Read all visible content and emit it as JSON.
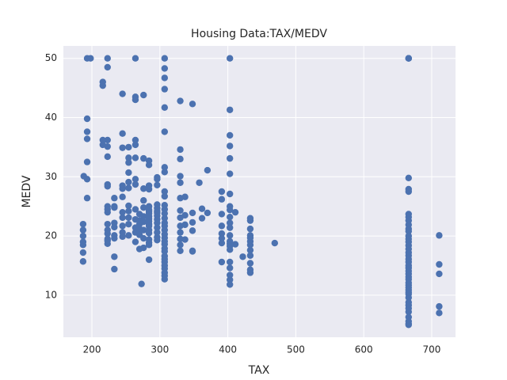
{
  "chart_data": {
    "type": "scatter",
    "title": "Housing Data:TAX/MEDV",
    "x_label": "TAX",
    "y_label": "MEDV",
    "color": "#4c72b0",
    "grid": true,
    "xlim": [
      158,
      735
    ],
    "ylim": [
      2.9,
      52.1
    ],
    "xticks": [
      200,
      300,
      400,
      500,
      600,
      700
    ],
    "yticks": [
      10,
      20,
      30,
      40,
      50
    ],
    "x": [
      187,
      187,
      187,
      187,
      187,
      187,
      187,
      193,
      193,
      193,
      193,
      193,
      193,
      193,
      188,
      198,
      216,
      216,
      216,
      216,
      223,
      223,
      223,
      223,
      223,
      223,
      223,
      223,
      223,
      223,
      223,
      223,
      223,
      223,
      223,
      223,
      233,
      233,
      233,
      233,
      233,
      233,
      233,
      233,
      233,
      245,
      245,
      245,
      245,
      245,
      245,
      245,
      245,
      245,
      245,
      245,
      254,
      254,
      254,
      254,
      254,
      254,
      254,
      254,
      254,
      254,
      254,
      264,
      264,
      264,
      264,
      264,
      264,
      264,
      264,
      264,
      264,
      264,
      264,
      264,
      270,
      270,
      270,
      270,
      270,
      270,
      273,
      276,
      276,
      276,
      276,
      276,
      276,
      276,
      276,
      276,
      276,
      284,
      284,
      284,
      284,
      284,
      284,
      284,
      284,
      284,
      284,
      284,
      284,
      284,
      284,
      284,
      284,
      284,
      284,
      284,
      296,
      296,
      296,
      296,
      296,
      296,
      296,
      296,
      296,
      296,
      296,
      296,
      296,
      296,
      307,
      307,
      307,
      307,
      307,
      307,
      307,
      307,
      307,
      307,
      307,
      307,
      307,
      307,
      307,
      307,
      307,
      307,
      307,
      307,
      307,
      307,
      307,
      307,
      307,
      307,
      307,
      307,
      307,
      307,
      307,
      330,
      330,
      330,
      330,
      330,
      330,
      330,
      330,
      330,
      330,
      330,
      330,
      330,
      337,
      337,
      337,
      337,
      348,
      348,
      348,
      348,
      348,
      348,
      358,
      362,
      362,
      370,
      370,
      391,
      391,
      391,
      391,
      391,
      391,
      391,
      391,
      403,
      403,
      403,
      403,
      403,
      403,
      403,
      403,
      403,
      403,
      403,
      403,
      403,
      403,
      403,
      403,
      403,
      403,
      403,
      403,
      403,
      403,
      411,
      411,
      422,
      433,
      433,
      433,
      433,
      433,
      433,
      433,
      433,
      433,
      433,
      433,
      433,
      469,
      666,
      666,
      666,
      666,
      666,
      666,
      666,
      666,
      666,
      666,
      666,
      666,
      666,
      666,
      666,
      666,
      666,
      666,
      666,
      666,
      666,
      666,
      666,
      666,
      666,
      666,
      666,
      666,
      666,
      666,
      666,
      666,
      666,
      666,
      666,
      666,
      666,
      666,
      666,
      666,
      666,
      666,
      711,
      711,
      711,
      711,
      711
    ],
    "values": [
      22,
      21,
      20,
      17.2,
      15.7,
      19,
      18.5,
      50,
      39.8,
      37.6,
      36.4,
      32.5,
      29.6,
      26.4,
      30.1,
      50,
      46,
      45.4,
      36.2,
      35.4,
      50,
      48.5,
      36.2,
      35.1,
      33.4,
      28.7,
      28.4,
      25,
      24.5,
      24,
      22,
      21,
      20.4,
      19.5,
      18.7,
      19.2,
      26.4,
      25,
      24.8,
      22.2,
      21.5,
      20.1,
      19.6,
      16.5,
      14.4,
      44,
      37.3,
      34.9,
      28.5,
      28,
      26.6,
      24,
      23.1,
      21.7,
      20.6,
      19.9,
      35,
      33.2,
      32.4,
      30.7,
      29.1,
      28.1,
      25.1,
      24.2,
      23.1,
      22,
      20.1,
      50,
      43.5,
      43,
      36.2,
      35.4,
      33.2,
      29.6,
      28.7,
      24.5,
      22.8,
      21.4,
      20.6,
      19,
      23.7,
      22.6,
      22,
      21.2,
      20.2,
      17.8,
      11.9,
      43.8,
      33.1,
      28,
      26,
      24.8,
      23.3,
      22.4,
      21,
      19.6,
      18,
      32.7,
      32,
      28.5,
      27.9,
      25,
      24.4,
      24.1,
      23.8,
      23.3,
      22.9,
      22.5,
      22,
      21.7,
      21,
      20.5,
      19.4,
      18.9,
      18.5,
      16,
      29.9,
      29.6,
      28.6,
      25.3,
      24.7,
      24.2,
      23.9,
      23.4,
      22.8,
      22.2,
      21.4,
      20.6,
      19.8,
      19.3,
      50,
      48.3,
      46.7,
      44.8,
      41.7,
      37.6,
      31.6,
      30.8,
      27.5,
      26.7,
      25.2,
      24.5,
      23.8,
      23,
      22.2,
      21.7,
      21,
      20.3,
      19.7,
      19.1,
      18.6,
      17.9,
      17.4,
      16.6,
      16.1,
      15.6,
      15,
      14.5,
      13.8,
      13.3,
      12.7,
      42.8,
      34.6,
      33,
      30.1,
      29,
      26.4,
      24.3,
      23.1,
      21.7,
      20.6,
      19.5,
      18.5,
      17.5,
      26.6,
      23.5,
      21.9,
      19.4,
      42.3,
      23.9,
      22.3,
      20.9,
      17.5,
      17.4,
      29,
      24.6,
      23,
      31.1,
      23.9,
      27.5,
      26.2,
      23.7,
      21.7,
      20.4,
      19.6,
      18.8,
      15.6,
      50,
      41.3,
      37,
      35.2,
      33.1,
      30.5,
      27.1,
      25,
      24.4,
      23.2,
      22.2,
      21.4,
      20.1,
      19.1,
      18.7,
      18.3,
      17.7,
      15.6,
      14.6,
      13.4,
      12.6,
      11.8,
      24,
      18.6,
      16.5,
      23,
      22.6,
      21.2,
      20.1,
      19.7,
      19.1,
      18.5,
      17.6,
      16.7,
      15.4,
      14.3,
      13.8,
      18.8,
      50,
      50,
      50,
      29.8,
      27.9,
      27.5,
      23.7,
      23.2,
      22.6,
      21.9,
      21.2,
      20.8,
      20,
      19.5,
      19,
      18.4,
      17.8,
      17.2,
      16.7,
      16.1,
      15.6,
      15,
      14.6,
      14.1,
      13.6,
      13.1,
      12.7,
      12.1,
      11.7,
      11.3,
      10.9,
      10.5,
      10.2,
      9.6,
      8.8,
      8.3,
      7.8,
      7.2,
      6.3,
      5.6,
      5,
      5.2,
      20.1,
      15.2,
      13.6,
      8.1,
      7
    ]
  }
}
